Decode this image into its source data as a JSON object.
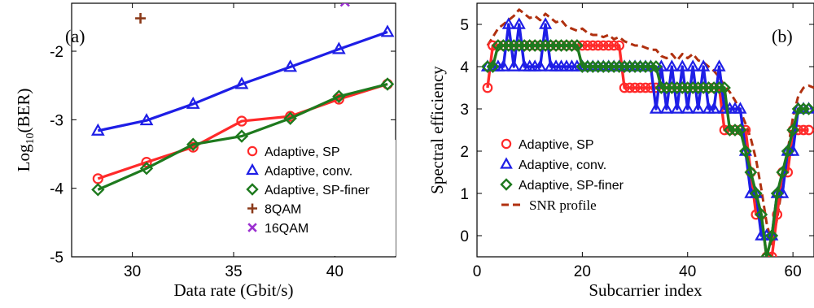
{
  "chart_data": [
    {
      "panel_label": "(a)",
      "type": "line",
      "xlabel": "Data rate (Gbit/s)",
      "ylabel_main": "Log",
      "ylabel_sub": "10",
      "ylabel_tail": "(BER)",
      "xlim": [
        27,
        43
      ],
      "ylim": [
        -5,
        -1.3
      ],
      "xticks": [
        30,
        35,
        40
      ],
      "xtick_labels": [
        "30",
        "35",
        "40"
      ],
      "yticks": [
        -5,
        -4,
        -3,
        -2
      ],
      "ytick_labels": [
        "-5",
        "-4",
        "-3",
        "-2"
      ],
      "legend_position": "bottom-right",
      "series": [
        {
          "name": "Adaptive, SP",
          "color": "#ff2a2a",
          "marker": "circle",
          "x": [
            28.3,
            30.7,
            33.0,
            35.4,
            37.8,
            40.2,
            42.6
          ],
          "y": [
            -3.86,
            -3.62,
            -3.4,
            -3.02,
            -2.95,
            -2.7,
            -2.48
          ]
        },
        {
          "name": "Adaptive, conv.",
          "color": "#1e1ee6",
          "marker": "triangle",
          "x": [
            28.3,
            30.7,
            33.0,
            35.4,
            37.8,
            40.2,
            42.6
          ],
          "y": [
            -3.16,
            -3.01,
            -2.77,
            -2.48,
            -2.23,
            -1.97,
            -1.72
          ]
        },
        {
          "name": "Adaptive, SP-finer",
          "color": "#1e7a1e",
          "marker": "diamond",
          "x": [
            28.3,
            30.7,
            33.0,
            35.4,
            37.8,
            40.2,
            42.6
          ],
          "y": [
            -4.02,
            -3.71,
            -3.36,
            -3.24,
            -2.98,
            -2.66,
            -2.48
          ]
        },
        {
          "name": "8QAM",
          "color": "#8b3a1a",
          "marker": "plus",
          "x": [
            30.4
          ],
          "y": [
            -1.52
          ]
        },
        {
          "name": "16QAM",
          "color": "#9b30d0",
          "marker": "cross",
          "x": [
            40.5
          ],
          "y": [
            -1.28
          ]
        }
      ]
    },
    {
      "panel_label": "(b)",
      "type": "line",
      "xlabel": "Subcarrier index",
      "ylabel": "Spectral efficiency",
      "xlim": [
        0,
        64
      ],
      "ylim": [
        -0.5,
        5.5
      ],
      "xticks": [
        0,
        20,
        40,
        60
      ],
      "xtick_labels": [
        "0",
        "20",
        "40",
        "60"
      ],
      "yticks": [
        0,
        1,
        2,
        3,
        4,
        5
      ],
      "ytick_labels": [
        "0",
        "1",
        "2",
        "3",
        "4",
        "5"
      ],
      "legend_position": "middle-left",
      "series": [
        {
          "name": "Adaptive, SP",
          "color": "#ff2a2a",
          "marker": "circle",
          "x": [
            2,
            3,
            4,
            5,
            6,
            7,
            8,
            9,
            10,
            11,
            12,
            13,
            14,
            15,
            16,
            17,
            18,
            19,
            20,
            21,
            22,
            23,
            24,
            25,
            26,
            27,
            28,
            29,
            30,
            31,
            32,
            33,
            34,
            35,
            36,
            37,
            38,
            39,
            40,
            41,
            42,
            43,
            44,
            45,
            46,
            47,
            48,
            49,
            50,
            51,
            52,
            53,
            54,
            55,
            56,
            57,
            58,
            59,
            60,
            61,
            62,
            63
          ],
          "y": [
            3.5,
            4.5,
            4.5,
            4.5,
            4.5,
            4.5,
            4.5,
            4.5,
            4.5,
            4.5,
            4.5,
            4.5,
            4.5,
            4.5,
            4.5,
            4.5,
            4.5,
            4.5,
            4.5,
            4.5,
            4.5,
            4.5,
            4.5,
            4.5,
            4.5,
            4.5,
            3.5,
            3.5,
            3.5,
            3.5,
            3.5,
            3.5,
            3.5,
            3.5,
            3.5,
            3.5,
            3.5,
            3.5,
            3.5,
            3.5,
            3.5,
            3.5,
            3.5,
            3.5,
            3.5,
            2.5,
            2.5,
            2.5,
            2.5,
            2.5,
            1.5,
            0.5,
            0.5,
            -0.5,
            -0.5,
            0.5,
            1.5,
            1.5,
            2.5,
            2.5,
            2.5,
            2.5
          ]
        },
        {
          "name": "Adaptive, conv.",
          "color": "#1e1ee6",
          "marker": "triangle",
          "x": [
            2,
            3,
            4,
            5,
            6,
            7,
            8,
            9,
            10,
            11,
            12,
            13,
            14,
            15,
            16,
            17,
            18,
            19,
            20,
            21,
            22,
            23,
            24,
            25,
            26,
            27,
            28,
            29,
            30,
            31,
            32,
            33,
            34,
            35,
            36,
            37,
            38,
            39,
            40,
            41,
            42,
            43,
            44,
            45,
            46,
            47,
            48,
            49,
            50,
            51,
            52,
            53,
            54,
            55,
            56,
            57,
            58,
            59,
            60,
            61,
            62,
            63
          ],
          "y": [
            4,
            4,
            4,
            4,
            5,
            4,
            5,
            4,
            4,
            4,
            4,
            5,
            4,
            4,
            4,
            4,
            4,
            4,
            4,
            4,
            4,
            4,
            4,
            4,
            4,
            4,
            4,
            4,
            4,
            4,
            4,
            4,
            3,
            4,
            3,
            4,
            3,
            4,
            3,
            4,
            3,
            4,
            3,
            3,
            4,
            3,
            3,
            3,
            3,
            2,
            1,
            1,
            0,
            0,
            0,
            1,
            1,
            2,
            2,
            3,
            3,
            3
          ]
        },
        {
          "name": "Adaptive, SP-finer",
          "color": "#1e7a1e",
          "marker": "diamond",
          "x": [
            2,
            3,
            4,
            5,
            6,
            7,
            8,
            9,
            10,
            11,
            12,
            13,
            14,
            15,
            16,
            17,
            18,
            19,
            20,
            21,
            22,
            23,
            24,
            25,
            26,
            27,
            28,
            29,
            30,
            31,
            32,
            33,
            34,
            35,
            36,
            37,
            38,
            39,
            40,
            41,
            42,
            43,
            44,
            45,
            46,
            47,
            48,
            49,
            50,
            51,
            52,
            53,
            54,
            55,
            56,
            57,
            58,
            59,
            60,
            61,
            62,
            63
          ],
          "y": [
            4,
            4,
            4.5,
            4.5,
            4.5,
            4.5,
            4.5,
            4.5,
            4.5,
            4.5,
            4.5,
            4.5,
            4.5,
            4.5,
            4.5,
            4.5,
            4.5,
            4.5,
            4,
            4,
            4,
            4,
            4,
            4,
            4,
            4,
            4,
            4,
            4,
            4,
            4,
            4,
            4,
            3.5,
            3.5,
            3.5,
            3.5,
            3.5,
            3.5,
            3.5,
            3.5,
            3.5,
            3.5,
            3.5,
            3.5,
            3.5,
            2.5,
            2.5,
            2.5,
            2,
            1.5,
            1,
            0.5,
            -0.5,
            0,
            1,
            1.5,
            2,
            2.5,
            3,
            3,
            3
          ]
        },
        {
          "name": "SNR profile",
          "color": "#b0300f",
          "marker": "none",
          "dashed": true,
          "x": [
            2,
            3,
            4,
            5,
            6,
            7,
            8,
            9,
            10,
            11,
            12,
            13,
            14,
            15,
            16,
            17,
            18,
            19,
            20,
            21,
            22,
            23,
            24,
            25,
            26,
            27,
            28,
            29,
            30,
            31,
            32,
            33,
            34,
            35,
            36,
            37,
            38,
            39,
            40,
            41,
            42,
            43,
            44,
            45,
            46,
            47,
            48,
            49,
            50,
            51,
            52,
            53,
            54,
            55,
            56,
            57,
            58,
            59,
            60,
            61,
            62,
            63,
            64
          ],
          "y": [
            4.5,
            4.7,
            4.9,
            5.0,
            5.1,
            5.2,
            5.35,
            5.25,
            5.15,
            5.2,
            5.1,
            5.25,
            5.15,
            5.05,
            5.1,
            4.95,
            4.9,
            4.85,
            4.9,
            4.8,
            4.75,
            4.75,
            4.7,
            4.75,
            4.65,
            4.7,
            4.6,
            4.55,
            4.5,
            4.5,
            4.45,
            4.4,
            4.4,
            4.25,
            4.2,
            4.3,
            4.15,
            4.3,
            4.2,
            4.3,
            4.15,
            4.1,
            4.0,
            3.9,
            3.75,
            3.55,
            3.4,
            3.2,
            2.95,
            2.65,
            2.3,
            1.8,
            1.1,
            0.3,
            -0.2,
            0.4,
            1.2,
            2.0,
            2.8,
            3.3,
            3.5,
            3.55,
            3.5
          ]
        }
      ]
    }
  ]
}
